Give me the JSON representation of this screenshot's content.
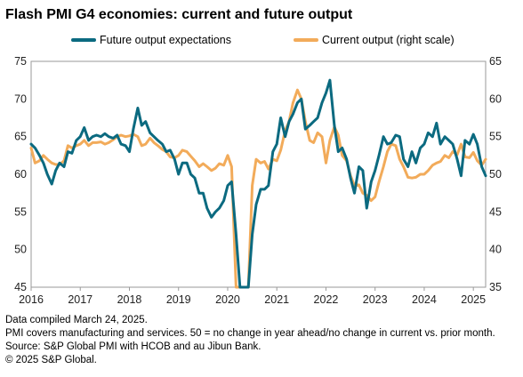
{
  "title": "Flash PMI G4 economies: current and future output",
  "legend": {
    "future": "Future output expectations",
    "current": "Current output (right scale)"
  },
  "notes": [
    "Data compiled March 24, 2025.",
    "PMI covers manufacturing and services. 50 = no change in year ahead/no change in current vs. prior month.",
    "Source: S&P Global PMI with HCOB and au Jibun Bank.",
    "© 2025 S&P Global."
  ],
  "chart_data": {
    "type": "line",
    "title": "Flash PMI G4 economies: current and future output",
    "x_axis": {
      "ticks": [
        "2016",
        "2017",
        "2018",
        "2019",
        "2020",
        "2021",
        "2022",
        "2023",
        "2024",
        "2025"
      ],
      "range": [
        2016.0,
        2025.25
      ]
    },
    "y_left": {
      "range": [
        45,
        75
      ],
      "ticks": [
        45,
        50,
        55,
        60,
        65,
        70,
        75
      ]
    },
    "y_right": {
      "range": [
        35,
        65
      ],
      "ticks": [
        35,
        40,
        45,
        50,
        55,
        60,
        65
      ]
    },
    "grid": false,
    "legend_position": "top",
    "colors": {
      "future": "#0b6a80",
      "current": "#f2ab5a"
    },
    "series": [
      {
        "name": "Future output expectations",
        "axis": "left",
        "points": [
          [
            2016.0,
            64.0
          ],
          [
            2016.08,
            63.5
          ],
          [
            2016.17,
            62.5
          ],
          [
            2016.25,
            61.5
          ],
          [
            2016.33,
            60.0
          ],
          [
            2016.42,
            58.7
          ],
          [
            2016.5,
            60.5
          ],
          [
            2016.58,
            61.5
          ],
          [
            2016.67,
            61.0
          ],
          [
            2016.75,
            63.0
          ],
          [
            2016.83,
            62.8
          ],
          [
            2016.92,
            64.5
          ],
          [
            2017.0,
            65.0
          ],
          [
            2017.08,
            66.2
          ],
          [
            2017.17,
            64.5
          ],
          [
            2017.25,
            65.0
          ],
          [
            2017.33,
            65.2
          ],
          [
            2017.42,
            65.0
          ],
          [
            2017.5,
            65.4
          ],
          [
            2017.58,
            65.0
          ],
          [
            2017.67,
            64.8
          ],
          [
            2017.75,
            65.2
          ],
          [
            2017.83,
            64.0
          ],
          [
            2017.92,
            63.8
          ],
          [
            2018.0,
            63.0
          ],
          [
            2018.08,
            66.0
          ],
          [
            2018.17,
            68.8
          ],
          [
            2018.25,
            66.5
          ],
          [
            2018.33,
            67.0
          ],
          [
            2018.42,
            65.5
          ],
          [
            2018.5,
            65.0
          ],
          [
            2018.58,
            64.5
          ],
          [
            2018.67,
            64.0
          ],
          [
            2018.75,
            63.0
          ],
          [
            2018.83,
            63.2
          ],
          [
            2018.92,
            62.0
          ],
          [
            2019.0,
            60.0
          ],
          [
            2019.08,
            61.5
          ],
          [
            2019.17,
            61.5
          ],
          [
            2019.25,
            60.0
          ],
          [
            2019.33,
            59.5
          ],
          [
            2019.42,
            57.5
          ],
          [
            2019.5,
            57.5
          ],
          [
            2019.58,
            55.5
          ],
          [
            2019.67,
            54.3
          ],
          [
            2019.75,
            55.0
          ],
          [
            2019.83,
            55.5
          ],
          [
            2019.92,
            56.5
          ],
          [
            2020.0,
            58.5
          ],
          [
            2020.08,
            59.0
          ],
          [
            2020.17,
            52.0
          ],
          [
            2020.25,
            45.0
          ],
          [
            2020.33,
            45.0
          ],
          [
            2020.42,
            45.0
          ],
          [
            2020.5,
            52.0
          ],
          [
            2020.58,
            56.0
          ],
          [
            2020.67,
            58.0
          ],
          [
            2020.75,
            58.0
          ],
          [
            2020.83,
            58.5
          ],
          [
            2020.92,
            63.0
          ],
          [
            2021.0,
            64.0
          ],
          [
            2021.08,
            67.5
          ],
          [
            2021.17,
            65.0
          ],
          [
            2021.25,
            67.0
          ],
          [
            2021.33,
            68.0
          ],
          [
            2021.42,
            69.5
          ],
          [
            2021.5,
            70.0
          ],
          [
            2021.58,
            66.0
          ],
          [
            2021.67,
            66.5
          ],
          [
            2021.75,
            67.0
          ],
          [
            2021.83,
            67.5
          ],
          [
            2021.92,
            69.5
          ],
          [
            2022.0,
            70.8
          ],
          [
            2022.08,
            72.5
          ],
          [
            2022.17,
            66.5
          ],
          [
            2022.25,
            63.0
          ],
          [
            2022.33,
            63.5
          ],
          [
            2022.42,
            62.0
          ],
          [
            2022.5,
            59.5
          ],
          [
            2022.58,
            57.5
          ],
          [
            2022.67,
            61.0
          ],
          [
            2022.75,
            60.5
          ],
          [
            2022.83,
            55.5
          ],
          [
            2022.92,
            59.0
          ],
          [
            2023.0,
            60.5
          ],
          [
            2023.08,
            62.5
          ],
          [
            2023.17,
            65.0
          ],
          [
            2023.25,
            64.0
          ],
          [
            2023.33,
            64.2
          ],
          [
            2023.42,
            65.2
          ],
          [
            2023.5,
            65.0
          ],
          [
            2023.58,
            62.0
          ],
          [
            2023.67,
            61.0
          ],
          [
            2023.75,
            63.0
          ],
          [
            2023.83,
            61.5
          ],
          [
            2023.92,
            63.5
          ],
          [
            2024.0,
            64.0
          ],
          [
            2024.08,
            65.5
          ],
          [
            2024.17,
            65.0
          ],
          [
            2024.25,
            66.8
          ],
          [
            2024.33,
            64.0
          ],
          [
            2024.42,
            65.0
          ],
          [
            2024.5,
            64.5
          ],
          [
            2024.58,
            64.0
          ],
          [
            2024.67,
            62.0
          ],
          [
            2024.75,
            59.8
          ],
          [
            2024.83,
            64.5
          ],
          [
            2024.92,
            64.0
          ],
          [
            2025.0,
            65.3
          ],
          [
            2025.08,
            64.0
          ],
          [
            2025.17,
            61.0
          ],
          [
            2025.25,
            59.8
          ]
        ]
      },
      {
        "name": "Current output (right scale)",
        "axis": "right",
        "points": [
          [
            2016.0,
            53.5
          ],
          [
            2016.08,
            51.5
          ],
          [
            2016.17,
            51.8
          ],
          [
            2016.25,
            52.5
          ],
          [
            2016.33,
            52.0
          ],
          [
            2016.42,
            51.5
          ],
          [
            2016.5,
            51.3
          ],
          [
            2016.58,
            51.3
          ],
          [
            2016.67,
            51.8
          ],
          [
            2016.75,
            53.8
          ],
          [
            2016.83,
            53.5
          ],
          [
            2016.92,
            53.8
          ],
          [
            2017.0,
            54.0
          ],
          [
            2017.08,
            54.5
          ],
          [
            2017.17,
            53.8
          ],
          [
            2017.25,
            54.2
          ],
          [
            2017.33,
            54.2
          ],
          [
            2017.42,
            54.3
          ],
          [
            2017.5,
            54.0
          ],
          [
            2017.58,
            54.2
          ],
          [
            2017.67,
            54.6
          ],
          [
            2017.75,
            55.0
          ],
          [
            2017.83,
            55.2
          ],
          [
            2017.92,
            55.0
          ],
          [
            2018.0,
            55.1
          ],
          [
            2018.08,
            55.3
          ],
          [
            2018.17,
            55.0
          ],
          [
            2018.25,
            53.8
          ],
          [
            2018.33,
            54.0
          ],
          [
            2018.42,
            54.8
          ],
          [
            2018.5,
            54.2
          ],
          [
            2018.58,
            53.8
          ],
          [
            2018.67,
            53.3
          ],
          [
            2018.75,
            53.0
          ],
          [
            2018.83,
            52.3
          ],
          [
            2018.92,
            52.2
          ],
          [
            2019.0,
            52.5
          ],
          [
            2019.08,
            53.2
          ],
          [
            2019.17,
            53.0
          ],
          [
            2019.25,
            52.4
          ],
          [
            2019.33,
            51.8
          ],
          [
            2019.42,
            51.0
          ],
          [
            2019.5,
            51.4
          ],
          [
            2019.58,
            51.0
          ],
          [
            2019.67,
            50.5
          ],
          [
            2019.75,
            50.8
          ],
          [
            2019.83,
            51.4
          ],
          [
            2019.92,
            51.2
          ],
          [
            2020.0,
            52.5
          ],
          [
            2020.08,
            51.0
          ],
          [
            2020.17,
            35.0
          ],
          [
            2020.25,
            35.0
          ],
          [
            2020.33,
            35.0
          ],
          [
            2020.42,
            35.0
          ],
          [
            2020.5,
            48.5
          ],
          [
            2020.58,
            52.0
          ],
          [
            2020.67,
            51.5
          ],
          [
            2020.75,
            51.7
          ],
          [
            2020.83,
            50.7
          ],
          [
            2020.92,
            52.0
          ],
          [
            2021.0,
            51.8
          ],
          [
            2021.08,
            53.2
          ],
          [
            2021.17,
            55.8
          ],
          [
            2021.25,
            57.0
          ],
          [
            2021.33,
            59.5
          ],
          [
            2021.42,
            61.2
          ],
          [
            2021.5,
            60.0
          ],
          [
            2021.58,
            57.0
          ],
          [
            2021.67,
            54.5
          ],
          [
            2021.75,
            54.2
          ],
          [
            2021.83,
            55.5
          ],
          [
            2021.92,
            55.0
          ],
          [
            2022.0,
            51.5
          ],
          [
            2022.08,
            54.5
          ],
          [
            2022.17,
            56.3
          ],
          [
            2022.25,
            55.2
          ],
          [
            2022.33,
            52.5
          ],
          [
            2022.42,
            51.8
          ],
          [
            2022.5,
            49.8
          ],
          [
            2022.58,
            48.5
          ],
          [
            2022.67,
            48.6
          ],
          [
            2022.75,
            47.5
          ],
          [
            2022.83,
            47.2
          ],
          [
            2022.92,
            46.5
          ],
          [
            2023.0,
            47.0
          ],
          [
            2023.08,
            49.0
          ],
          [
            2023.17,
            51.0
          ],
          [
            2023.25,
            53.0
          ],
          [
            2023.33,
            54.0
          ],
          [
            2023.42,
            53.8
          ],
          [
            2023.5,
            52.0
          ],
          [
            2023.58,
            51.0
          ],
          [
            2023.67,
            49.6
          ],
          [
            2023.75,
            49.5
          ],
          [
            2023.83,
            49.6
          ],
          [
            2023.92,
            50.0
          ],
          [
            2024.0,
            50.0
          ],
          [
            2024.08,
            50.5
          ],
          [
            2024.17,
            51.2
          ],
          [
            2024.25,
            51.5
          ],
          [
            2024.33,
            51.7
          ],
          [
            2024.42,
            52.5
          ],
          [
            2024.5,
            52.2
          ],
          [
            2024.58,
            53.0
          ],
          [
            2024.67,
            52.6
          ],
          [
            2024.75,
            54.0
          ],
          [
            2024.83,
            52.3
          ],
          [
            2024.92,
            52.2
          ],
          [
            2025.0,
            52.9
          ],
          [
            2025.08,
            51.8
          ],
          [
            2025.17,
            51.2
          ],
          [
            2025.25,
            52.0
          ]
        ]
      }
    ]
  }
}
